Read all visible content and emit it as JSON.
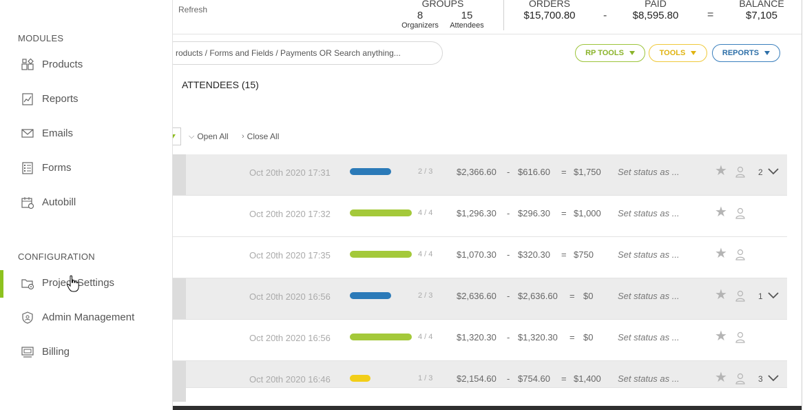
{
  "header": {
    "refresh_label": "Refresh",
    "groups_label": "GROUPS",
    "organizers_count": "8",
    "organizers_label": "Organizers",
    "attendees_count": "15",
    "attendees_label": "Attendees",
    "orders_label": "ORDERS",
    "orders_value": "$15,700.80",
    "minus": "-",
    "paid_label": "PAID",
    "paid_value": "$8,595.80",
    "equals": "=",
    "balance_label": "BALANCE",
    "balance_value": "$7,105"
  },
  "search": {
    "placeholder": "roducts / Forms and Fields / Payments OR Search anything..."
  },
  "tools": {
    "rp_tools": "RP TOOLS",
    "tools": "TOOLS",
    "reports": "REPORTS"
  },
  "attendees_tab": "ATTENDEES (15)",
  "list_controls": {
    "open_all": "Open All",
    "close_all": "Close All"
  },
  "colors": {
    "blue": "#2b7ab8",
    "green": "#a4c93a",
    "yellow": "#f2ce18",
    "accent": "#8dc21f"
  },
  "rows": [
    {
      "date": "Oct 20th 2020 17:31",
      "fraction": "2 / 3",
      "progress": 0.67,
      "bar_color": "blue",
      "orders": "$2,366.60",
      "minus": "-",
      "paid": "$616.60",
      "equals": "=",
      "balance": "$1,750",
      "status": "Set status as ...",
      "count": "2",
      "shaded": true
    },
    {
      "date": "Oct 20th 2020 17:32",
      "fraction": "4 / 4",
      "progress": 1.0,
      "bar_color": "green",
      "orders": "$1,296.30",
      "minus": "-",
      "paid": "$296.30",
      "equals": "=",
      "balance": "$1,000",
      "status": "Set status as ...",
      "count": "",
      "shaded": false
    },
    {
      "date": "Oct 20th 2020 17:35",
      "fraction": "4 / 4",
      "progress": 1.0,
      "bar_color": "green",
      "orders": "$1,070.30",
      "minus": "-",
      "paid": "$320.30",
      "equals": "=",
      "balance": "$750",
      "status": "Set status as ...",
      "count": "",
      "shaded": false
    },
    {
      "date": "Oct 20th 2020 16:56",
      "fraction": "2 / 3",
      "progress": 0.67,
      "bar_color": "blue",
      "orders": "$2,636.60",
      "minus": "-",
      "paid": "$2,636.60",
      "equals": "=",
      "balance": "$0",
      "status": "Set status as ...",
      "count": "1",
      "shaded": true
    },
    {
      "date": "Oct 20th 2020 16:56",
      "fraction": "4 / 4",
      "progress": 1.0,
      "bar_color": "green",
      "orders": "$1,320.30",
      "minus": "-",
      "paid": "$1,320.30",
      "equals": "=",
      "balance": "$0",
      "status": "Set status as ...",
      "count": "",
      "shaded": false
    },
    {
      "date": "Oct 20th 2020 16:46",
      "fraction": "1 / 3",
      "progress": 0.33,
      "bar_color": "yellow",
      "orders": "$2,154.60",
      "minus": "-",
      "paid": "$754.60",
      "equals": "=",
      "balance": "$1,400",
      "status": "Set status as ...",
      "count": "3",
      "shaded": true
    }
  ],
  "sidebar": {
    "modules_title": "MODULES",
    "configuration_title": "CONFIGURATION",
    "modules": [
      {
        "label": "Products",
        "icon": "products-icon"
      },
      {
        "label": "Reports",
        "icon": "reports-icon"
      },
      {
        "label": "Emails",
        "icon": "emails-icon"
      },
      {
        "label": "Forms",
        "icon": "forms-icon"
      },
      {
        "label": "Autobill",
        "icon": "autobill-icon"
      }
    ],
    "configuration": [
      {
        "label": "Project Settings",
        "icon": "project-settings-icon",
        "active": true
      },
      {
        "label": "Admin Management",
        "icon": "admin-management-icon"
      },
      {
        "label": "Billing",
        "icon": "billing-icon"
      }
    ]
  }
}
